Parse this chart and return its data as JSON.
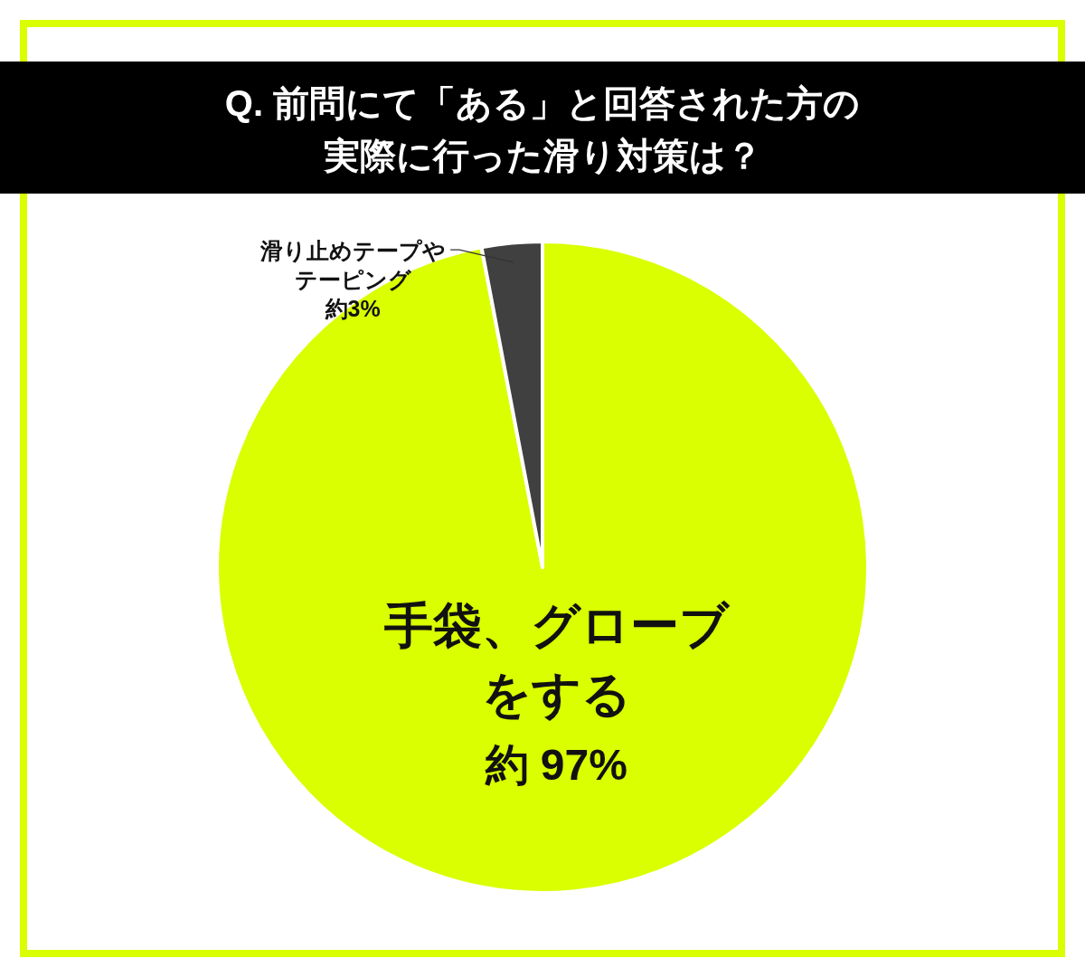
{
  "chart_data": {
    "type": "pie",
    "title": "Q. 前問にて「ある」と回答された方の実際に行った滑り対策は？",
    "categories": [
      "手袋、グローブをする",
      "滑り止めテープやテーピング"
    ],
    "values": [
      97,
      3
    ],
    "colors": [
      "#d9ff00",
      "#404040"
    ],
    "value_labels": [
      "約 97%",
      "約3%"
    ]
  }
}
